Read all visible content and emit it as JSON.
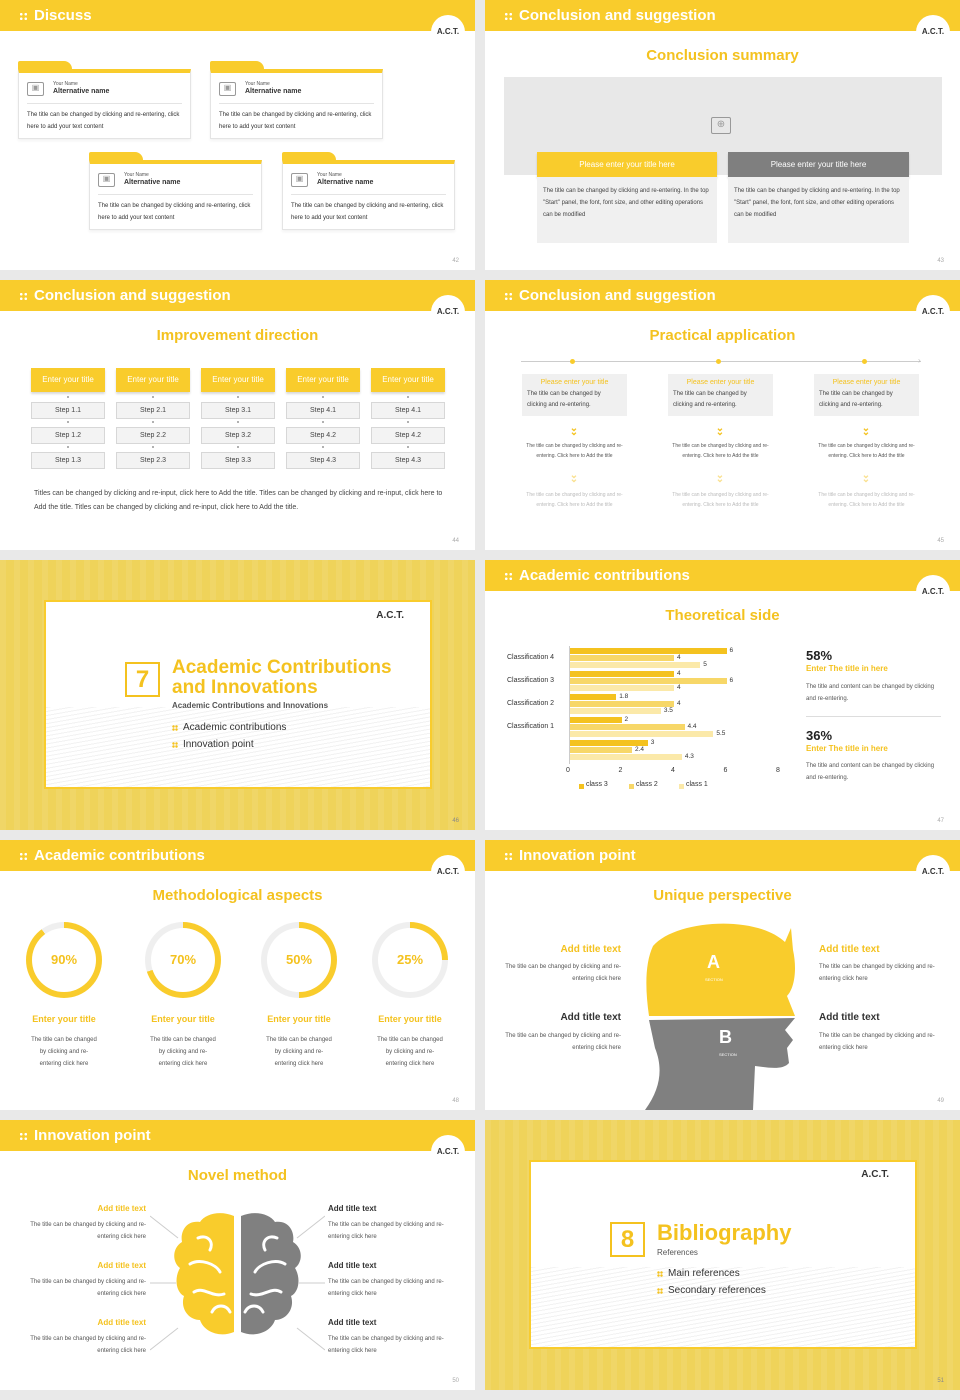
{
  "s42": {
    "header": "Discuss",
    "page": "42",
    "cards": [
      {
        "small": "Your Name",
        "name": "Alternative name",
        "text": "The title can be changed by clicking and re-entering, click here to add your text content"
      },
      {
        "small": "Your Name",
        "name": "Alternative name",
        "text": "The title can be changed by clicking and re-entering, click here to add your text content"
      },
      {
        "small": "Your Name",
        "name": "Alternative name",
        "text": "The title can be changed by clicking and re-entering, click here to add your text content"
      },
      {
        "small": "Your Name",
        "name": "Alternative name",
        "text": "The title can be changed by clicking and re-entering, click here to add your text content"
      }
    ]
  },
  "s43": {
    "header": "Conclusion and suggestion",
    "title": "Conclusion summary",
    "page": "43",
    "btn1": "Please enter your title here",
    "btn2": "Please enter your title here",
    "text1": "The title can be changed by clicking and re-entering. In the top \"Start\" panel, the font, font size, and other editing operations can be modified",
    "text2": "The title can be changed by clicking and re-entering. In the top \"Start\" panel, the font, font size, and other editing operations can be modified"
  },
  "s44": {
    "header": "Conclusion and suggestion",
    "title": "Improvement direction",
    "page": "44",
    "columns": [
      {
        "title": "Enter your title",
        "steps": [
          "Step 1.1",
          "Step 1.2",
          "Step 1.3"
        ]
      },
      {
        "title": "Enter your title",
        "steps": [
          "Step 2.1",
          "Step 2.2",
          "Step 2.3"
        ]
      },
      {
        "title": "Enter your title",
        "steps": [
          "Step 3.1",
          "Step 3.2",
          "Step 3.3"
        ]
      },
      {
        "title": "Enter your title",
        "steps": [
          "Step 4.1",
          "Step 4.2",
          "Step 4.3"
        ]
      },
      {
        "title": "Enter your title",
        "steps": [
          "Step 4.1",
          "Step 4.2",
          "Step 4.3"
        ]
      }
    ],
    "footer": "Titles can be changed by clicking and re-input, click here to Add the title. Titles can be changed by clicking and re-input, click here to Add the title. Titles can be changed by clicking and re-input, click here to Add the title."
  },
  "s45": {
    "header": "Conclusion and suggestion",
    "title": "Practical application",
    "page": "45",
    "cols": [
      {
        "title": "Please enter your title",
        "text": "The title can be changed by clicking and re-entering.",
        "t2": "The title can be changed by clicking and re-entering. Click here to Add the title",
        "t3": "The title can be changed by clicking and re-entering. Click here to Add the title"
      },
      {
        "title": "Please enter your title",
        "text": "The title can be changed by clicking and re-entering.",
        "t2": "The title can be changed by clicking and re-entering. Click here to Add the title",
        "t3": "The title can be changed by clicking and re-entering. Click here to Add the title"
      },
      {
        "title": "Please enter your title",
        "text": "The title can be changed by clicking and re-entering.",
        "t2": "The title can be changed by clicking and re-entering. Click here to Add the title",
        "t3": "The title can be changed by clicking and re-entering. Click here to Add the title"
      }
    ]
  },
  "s46": {
    "brand": "A.C.T.",
    "number": "7",
    "title": "Academic Contributions and Innovations",
    "subtitle": "Academic Contributions and Innovations",
    "items": [
      "Academic contributions",
      "Innovation point"
    ],
    "page": "46"
  },
  "s47": {
    "header": "Academic contributions",
    "title": "Theoretical side",
    "page": "47",
    "stat1": "58%",
    "stat1_title": "Enter The title in here",
    "stat1_text": "The title and content can be changed by clicking and re-entering.",
    "stat2": "36%",
    "stat2_title": "Enter The title in here",
    "stat2_text": "The title and content can be changed by clicking and re-entering."
  },
  "chart_data": {
    "type": "bar",
    "orientation": "horizontal",
    "categories": [
      "Classification 4",
      "Classification 3",
      "Classification 2",
      "Classification 1",
      ""
    ],
    "series": [
      {
        "name": "class 3",
        "values": [
          6,
          4,
          1.8,
          2,
          3
        ],
        "color": "#f4c21f"
      },
      {
        "name": "class 2",
        "values": [
          4,
          6,
          4,
          4.4,
          2.4
        ],
        "color": "#f7d768"
      },
      {
        "name": "class 1",
        "values": [
          5,
          4,
          3.5,
          5.5,
          4.3
        ],
        "color": "#fbe9a9"
      }
    ],
    "xticks": [
      "0",
      "2",
      "4",
      "6",
      "8"
    ],
    "xlim": [
      0,
      8
    ],
    "legend": "bottom"
  },
  "s48": {
    "header": "Academic contributions",
    "title": "Methodological aspects",
    "page": "48",
    "rings": [
      {
        "value": 90,
        "label": "90%",
        "title": "Enter your title",
        "text": "The title can be changed by clicking and re-entering click here"
      },
      {
        "value": 70,
        "label": "70%",
        "title": "Enter your title",
        "text": "The title can be changed by clicking and re-entering click here"
      },
      {
        "value": 50,
        "label": "50%",
        "title": "Enter your title",
        "text": "The title can be changed by clicking and re-entering click here"
      },
      {
        "value": 25,
        "label": "25%",
        "title": "Enter your title",
        "text": "The title can be changed by clicking and re-entering click here"
      }
    ]
  },
  "s49": {
    "header": "Innovation point",
    "title": "Unique perspective",
    "page": "49",
    "left": [
      {
        "title": "Add title text",
        "text": "The title can be changed by clicking and re-entering click here"
      },
      {
        "title": "Add title text",
        "text": "The title can be changed by clicking and re-entering click here"
      }
    ],
    "right": [
      {
        "title": "Add title text",
        "text": "The title can be changed by clicking and re-entering click here"
      },
      {
        "title": "Add title text",
        "text": "The title can be changed by clicking and re-entering click here"
      }
    ],
    "a": "A",
    "a_sub": "SECTION",
    "b": "B",
    "b_sub": "SECTION"
  },
  "s50": {
    "header": "Innovation point",
    "title": "Novel method",
    "page": "50",
    "left": [
      {
        "title": "Add title text",
        "text": "The title can be changed by clicking and re-entering click here"
      },
      {
        "title": "Add title text",
        "text": "The title can be changed by clicking and re-entering click here"
      },
      {
        "title": "Add title text",
        "text": "The title can be changed by clicking and re-entering click here"
      }
    ],
    "right": [
      {
        "title": "Add title text",
        "text": "The title can be changed by clicking and re-entering click here"
      },
      {
        "title": "Add title text",
        "text": "The title can be changed by clicking and re-entering click here"
      },
      {
        "title": "Add title text",
        "text": "The title can be changed by clicking and re-entering click here"
      }
    ]
  },
  "s51": {
    "brand": "A.C.T.",
    "number": "8",
    "title": "Bibliography",
    "subtitle": "References",
    "items": [
      "Main references",
      "Secondary references"
    ],
    "page": "51"
  },
  "brand": "A.C.T.",
  "colors": {
    "accent": "#f9cc2c",
    "gray": "#777777"
  }
}
